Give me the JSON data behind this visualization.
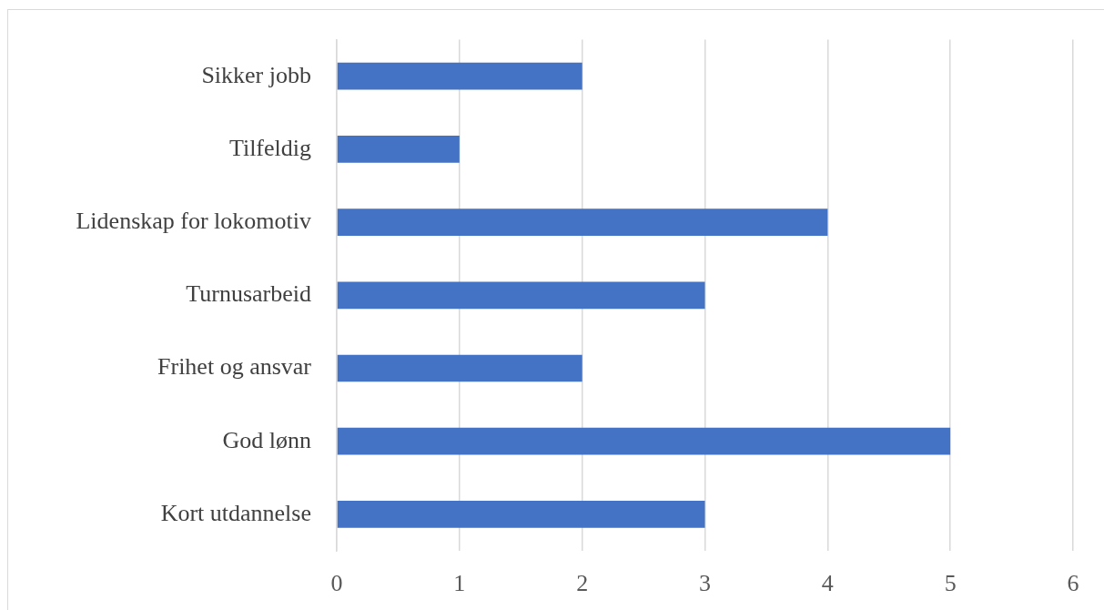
{
  "chart_data": {
    "type": "bar",
    "orientation": "horizontal",
    "categories": [
      "Sikker jobb",
      "Tilfeldig",
      "Lidenskap for lokomotiv",
      "Turnusarbeid",
      "Frihet og ansvar",
      "God lønn",
      "Kort utdannelse"
    ],
    "values": [
      2,
      1,
      4,
      3,
      2,
      5,
      3
    ],
    "color": "#4472c4",
    "xlim": [
      0,
      6
    ],
    "xticks": [
      0,
      1,
      2,
      3,
      4,
      5,
      6
    ],
    "grid": "x"
  }
}
